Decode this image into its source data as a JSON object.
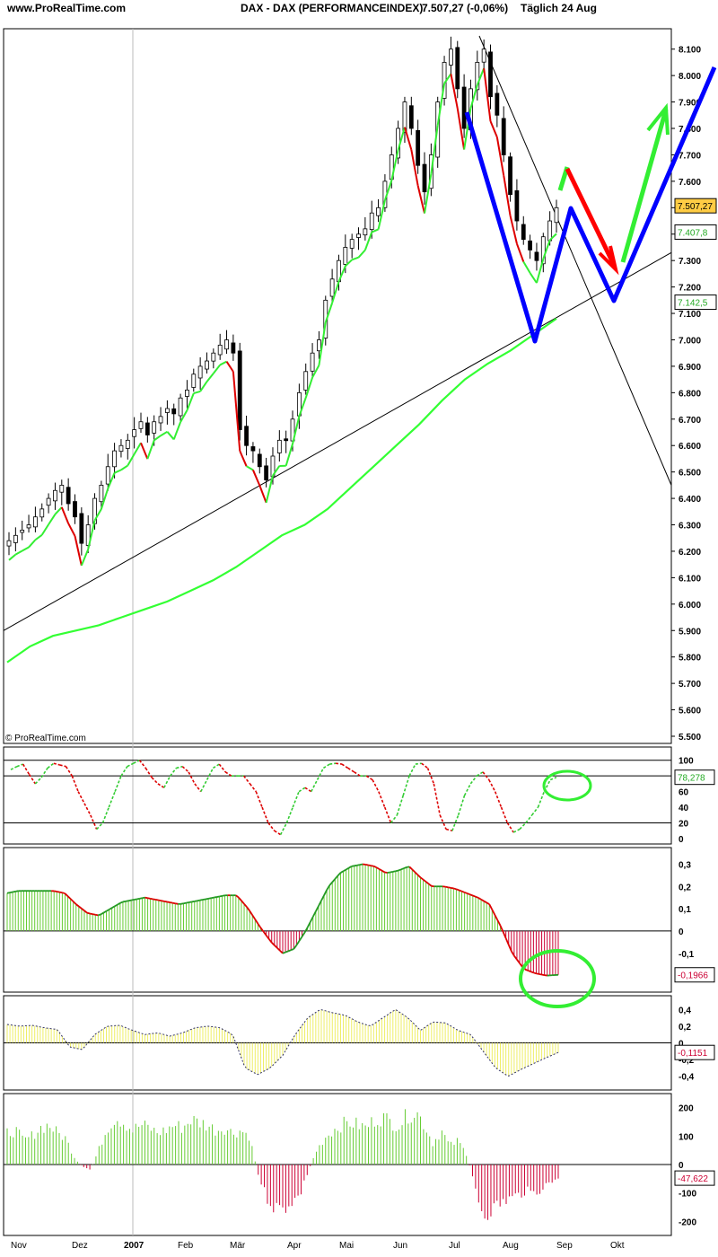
{
  "header": {
    "site": "www.ProRealTime.com",
    "title": "DAX - DAX (PERFORMANCEINDEX)",
    "price": "7.507,27 (-0,06%)",
    "period": "Täglich  24 Aug"
  },
  "watermark": "© ProRealTime.com",
  "colors": {
    "candle_up_trend": "#00cc00",
    "candle_down_trend": "#ff0000",
    "ma": "#33ff33",
    "supertrend_green": "#33ee33",
    "supertrend_red": "#dd0000",
    "drawn_blue": "#0000ff",
    "drawn_red": "#ff0000",
    "drawn_green": "#33ee33",
    "hist_pos_green": "#66cc33",
    "hist_neg_red": "#cc0033",
    "hist_yellow": "#eeee66",
    "stoch_red": "#dd0000",
    "stoch_green": "#33cc33",
    "price_badge_bg": "#ffcc44"
  },
  "chart_data": [
    {
      "type": "candlestick",
      "panel": "price",
      "ylim": [
        5500,
        8150
      ],
      "y_ticks": [
        "8.100",
        "8.000",
        "7.900",
        "7.800",
        "7.700",
        "7.600",
        "7.500",
        "7.400",
        "7.300",
        "7.200",
        "7.100",
        "7.000",
        "6.900",
        "6.800",
        "6.700",
        "6.600",
        "6.500",
        "6.400",
        "6.300",
        "6.200",
        "6.100",
        "6.000",
        "5.900",
        "5.800",
        "5.700",
        "5.600",
        "5.500"
      ],
      "x_labels": [
        "Nov",
        "Dez",
        "2007",
        "Feb",
        "Mär",
        "Apr",
        "Mai",
        "Jun",
        "Jul",
        "Aug",
        "Sep",
        "Okt"
      ],
      "close_series": [
        6240,
        6260,
        6280,
        6300,
        6330,
        6360,
        6400,
        6430,
        6450,
        6380,
        6330,
        6230,
        6300,
        6400,
        6450,
        6520,
        6580,
        6600,
        6620,
        6660,
        6690,
        6640,
        6690,
        6710,
        6740,
        6720,
        6780,
        6810,
        6870,
        6900,
        6920,
        6950,
        6980,
        7000,
        6950,
        6660,
        6600,
        6580,
        6520,
        6470,
        6560,
        6620,
        6620,
        6700,
        6800,
        6880,
        6950,
        7000,
        7150,
        7230,
        7300,
        7350,
        7380,
        7400,
        7420,
        7480,
        7500,
        7600,
        7700,
        7800,
        7900,
        7800,
        7660,
        7560,
        7700,
        7900,
        8050,
        8100,
        7950,
        7800,
        7950,
        8050,
        8100,
        7920,
        7850,
        7700,
        7550,
        7450,
        7380,
        7340,
        7300,
        7390,
        7450,
        7500
      ],
      "moving_average": [
        5780,
        5840,
        5880,
        5900,
        5920,
        5950,
        5980,
        6010,
        6050,
        6090,
        6140,
        6200,
        6260,
        6300,
        6360,
        6440,
        6520,
        6600,
        6680,
        6770,
        6850,
        6910,
        6960,
        7020,
        7080
      ],
      "badges": [
        {
          "label": "7.507,27",
          "value": 7507.27
        },
        {
          "label": "7.407,8",
          "value": 7407.8
        },
        {
          "label": "7.142,5",
          "value": 7142.5
        }
      ]
    },
    {
      "type": "line",
      "panel": "stochastic",
      "ylim": [
        0,
        110
      ],
      "y_ticks": [
        "100",
        "80",
        "60",
        "40",
        "20",
        "0"
      ],
      "levels": [
        20,
        80,
        100
      ],
      "values": [
        88,
        92,
        95,
        82,
        70,
        78,
        90,
        96,
        94,
        92,
        80,
        60,
        45,
        30,
        12,
        20,
        40,
        60,
        80,
        92,
        96,
        100,
        90,
        78,
        70,
        65,
        80,
        90,
        92,
        85,
        70,
        60,
        75,
        90,
        95,
        85,
        80,
        80,
        80,
        70,
        60,
        40,
        20,
        10,
        5,
        20,
        40,
        60,
        65,
        60,
        75,
        90,
        95,
        96,
        95,
        90,
        85,
        80,
        80,
        75,
        60,
        40,
        20,
        30,
        55,
        80,
        95,
        96,
        90,
        70,
        30,
        12,
        10,
        30,
        55,
        70,
        80,
        85,
        75,
        60,
        40,
        20,
        8,
        12,
        20,
        30,
        40,
        60,
        75,
        78.278
      ],
      "badge": "78,278"
    },
    {
      "type": "area",
      "panel": "macd_histogram",
      "ylim": [
        -0.25,
        0.35
      ],
      "y_ticks": [
        "0,3",
        "0,2",
        "0,1",
        "0",
        "-0,1",
        "-0,2"
      ],
      "values": [
        0.17,
        0.18,
        0.18,
        0.18,
        0.18,
        0.17,
        0.12,
        0.08,
        0.07,
        0.1,
        0.13,
        0.14,
        0.15,
        0.14,
        0.13,
        0.12,
        0.13,
        0.14,
        0.15,
        0.16,
        0.16,
        0.1,
        0.02,
        -0.05,
        -0.1,
        -0.08,
        0.0,
        0.1,
        0.2,
        0.26,
        0.29,
        0.3,
        0.29,
        0.26,
        0.27,
        0.29,
        0.24,
        0.2,
        0.2,
        0.19,
        0.17,
        0.15,
        0.12,
        0.02,
        -0.1,
        -0.17,
        -0.19,
        -0.2,
        -0.1966
      ],
      "badge": "-0,1966"
    },
    {
      "type": "area",
      "panel": "oscillator_yellow",
      "ylim": [
        -0.5,
        0.5
      ],
      "y_ticks": [
        "0,4",
        "0,2",
        "0",
        "-0,2",
        "-0,4"
      ],
      "values": [
        0.22,
        0.2,
        0.21,
        0.18,
        0.16,
        -0.05,
        -0.08,
        0.1,
        0.2,
        0.21,
        0.15,
        0.1,
        0.12,
        0.08,
        0.12,
        0.18,
        0.2,
        0.18,
        0.1,
        -0.3,
        -0.38,
        -0.3,
        -0.15,
        0.1,
        0.3,
        0.4,
        0.36,
        0.33,
        0.25,
        0.2,
        0.3,
        0.4,
        0.3,
        0.15,
        0.25,
        0.24,
        0.15,
        0.1,
        -0.1,
        -0.3,
        -0.4,
        -0.32,
        -0.25,
        -0.18,
        -0.1151
      ],
      "badge": "-0,1151"
    },
    {
      "type": "bar",
      "panel": "momentum",
      "ylim": [
        -230,
        230
      ],
      "y_ticks": [
        "200",
        "100",
        "0",
        "-100",
        "-200"
      ],
      "values": [
        120,
        130,
        90,
        110,
        140,
        150,
        120,
        100,
        30,
        -10,
        -20,
        60,
        140,
        180,
        160,
        130,
        150,
        140,
        120,
        130,
        150,
        140,
        170,
        160,
        150,
        130,
        140,
        120,
        130,
        110,
        -30,
        -120,
        -160,
        -170,
        -140,
        -120,
        -30,
        50,
        100,
        130,
        150,
        160,
        150,
        140,
        170,
        180,
        160,
        150,
        190,
        200,
        150,
        80,
        130,
        70,
        90,
        40,
        -80,
        -190,
        -170,
        -150,
        -130,
        -120,
        -100,
        -110,
        -90,
        -70,
        -47.622
      ],
      "badge": "-47,622"
    }
  ]
}
